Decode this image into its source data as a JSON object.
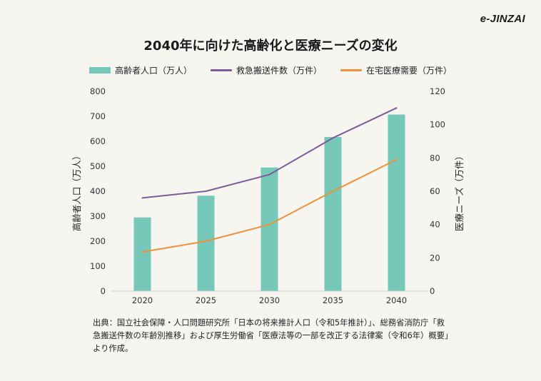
{
  "brand": {
    "logo_text": "e-JINZAI"
  },
  "colors": {
    "bar": "#76c8b8",
    "line_emergency": "#7a5c9e",
    "line_homecare": "#f0913a",
    "axis_text": "#333333",
    "grid": "#d9d9d9"
  },
  "chart_data": {
    "type": "bar+line",
    "title": "2040年に向けた高齢化と医療ニーズの変化",
    "categories": [
      "2020",
      "2025",
      "2030",
      "2035",
      "2040"
    ],
    "series": [
      {
        "name": "高齢者人口（万人）",
        "type": "bar",
        "axis": "left",
        "values": [
          295,
          382,
          495,
          617,
          707
        ]
      },
      {
        "name": "救急搬送件数（万件）",
        "type": "line",
        "axis": "right",
        "values": [
          56,
          60,
          70,
          92,
          110
        ]
      },
      {
        "name": "在宅医療需要（万件）",
        "type": "line",
        "axis": "right",
        "values": [
          23.5,
          30,
          40,
          60,
          79
        ]
      }
    ],
    "y_left": {
      "label": "高齢者人口（万人）",
      "range": [
        0,
        800
      ],
      "ticks": [
        "0",
        "100",
        "200",
        "300",
        "400",
        "500",
        "600",
        "700",
        "800"
      ]
    },
    "y_right": {
      "label": "医療ニーズ（万件）",
      "range": [
        0,
        120
      ],
      "ticks": [
        "0",
        "20",
        "40",
        "60",
        "80",
        "100",
        "120"
      ]
    },
    "grid": false,
    "legend_position": "top"
  },
  "source_text": "出典：国立社会保障・人口問題研究所「日本の将来推計人口（令和5年推計）」、総務省消防庁「救急搬送件数の年齢別推移」および厚生労働省「医療法等の一部を改正する法律案（令和6年）概要」より作成。"
}
